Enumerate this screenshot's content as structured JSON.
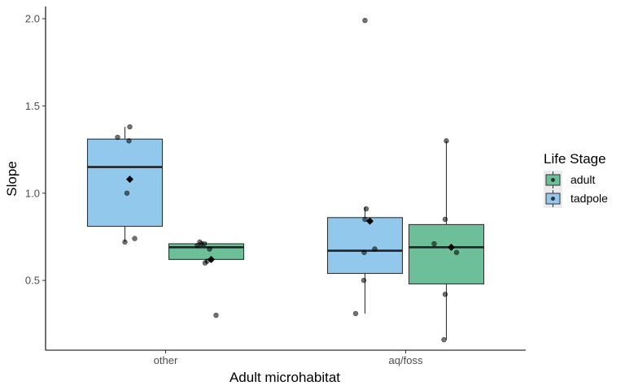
{
  "chart_data": {
    "type": "boxplot",
    "xlabel": "Adult microhabitat",
    "ylabel": "Slope",
    "categories": [
      "other",
      "aq/foss"
    ],
    "yticks": [
      0.5,
      1.0,
      1.5,
      2.0
    ],
    "ytick_labels": [
      "0.5",
      "1.0",
      "1.5",
      "2.0"
    ],
    "ylim": [
      0.1,
      2.07
    ],
    "grid": false,
    "legend": {
      "title": "Life Stage",
      "placement": "right",
      "entries": [
        {
          "name": "adult",
          "color": "#6dbf9a"
        },
        {
          "name": "tadpole",
          "color": "#92c8ec"
        }
      ]
    },
    "boxes": [
      {
        "category": "other",
        "stage": "tadpole",
        "min": 0.72,
        "q1": 0.81,
        "median": 1.15,
        "q3": 1.31,
        "max": 1.38,
        "mean": 1.08,
        "points": [
          {
            "x": -0.18,
            "y": 1.32
          },
          {
            "x": 0.12,
            "y": 1.38
          },
          {
            "x": 0.1,
            "y": 1.3
          },
          {
            "x": 0.05,
            "y": 1.0
          },
          {
            "x": 0.0,
            "y": 0.72
          },
          {
            "x": 0.24,
            "y": 0.74
          }
        ]
      },
      {
        "category": "other",
        "stage": "adult",
        "min": 0.6,
        "q1": 0.62,
        "median": 0.69,
        "q3": 0.71,
        "max": 0.72,
        "mean": 0.62,
        "points": [
          {
            "x": -0.22,
            "y": 0.7
          },
          {
            "x": -0.16,
            "y": 0.72
          },
          {
            "x": -0.12,
            "y": 0.71
          },
          {
            "x": -0.05,
            "y": 0.71
          },
          {
            "x": 0.08,
            "y": 0.68
          },
          {
            "x": -0.03,
            "y": 0.6
          },
          {
            "x": 0.02,
            "y": 0.61
          },
          {
            "x": 0.24,
            "y": 0.3
          }
        ]
      },
      {
        "category": "aq/foss",
        "stage": "tadpole",
        "min": 0.31,
        "q1": 0.54,
        "median": 0.67,
        "q3": 0.86,
        "max": 0.92,
        "mean": 0.84,
        "points": [
          {
            "x": 0.0,
            "y": 1.99
          },
          {
            "x": 0.03,
            "y": 0.91
          },
          {
            "x": 0.0,
            "y": 0.85
          },
          {
            "x": 0.24,
            "y": 0.68
          },
          {
            "x": -0.02,
            "y": 0.66
          },
          {
            "x": -0.03,
            "y": 0.5
          },
          {
            "x": -0.23,
            "y": 0.31
          }
        ]
      },
      {
        "category": "aq/foss",
        "stage": "adult",
        "min": 0.16,
        "q1": 0.48,
        "median": 0.69,
        "q3": 0.82,
        "max": 1.3,
        "mean": 0.69,
        "points": [
          {
            "x": 0.0,
            "y": 1.3
          },
          {
            "x": -0.03,
            "y": 0.85
          },
          {
            "x": -0.3,
            "y": 0.71
          },
          {
            "x": 0.25,
            "y": 0.66
          },
          {
            "x": -0.03,
            "y": 0.42
          },
          {
            "x": -0.06,
            "y": 0.16
          }
        ]
      }
    ]
  }
}
